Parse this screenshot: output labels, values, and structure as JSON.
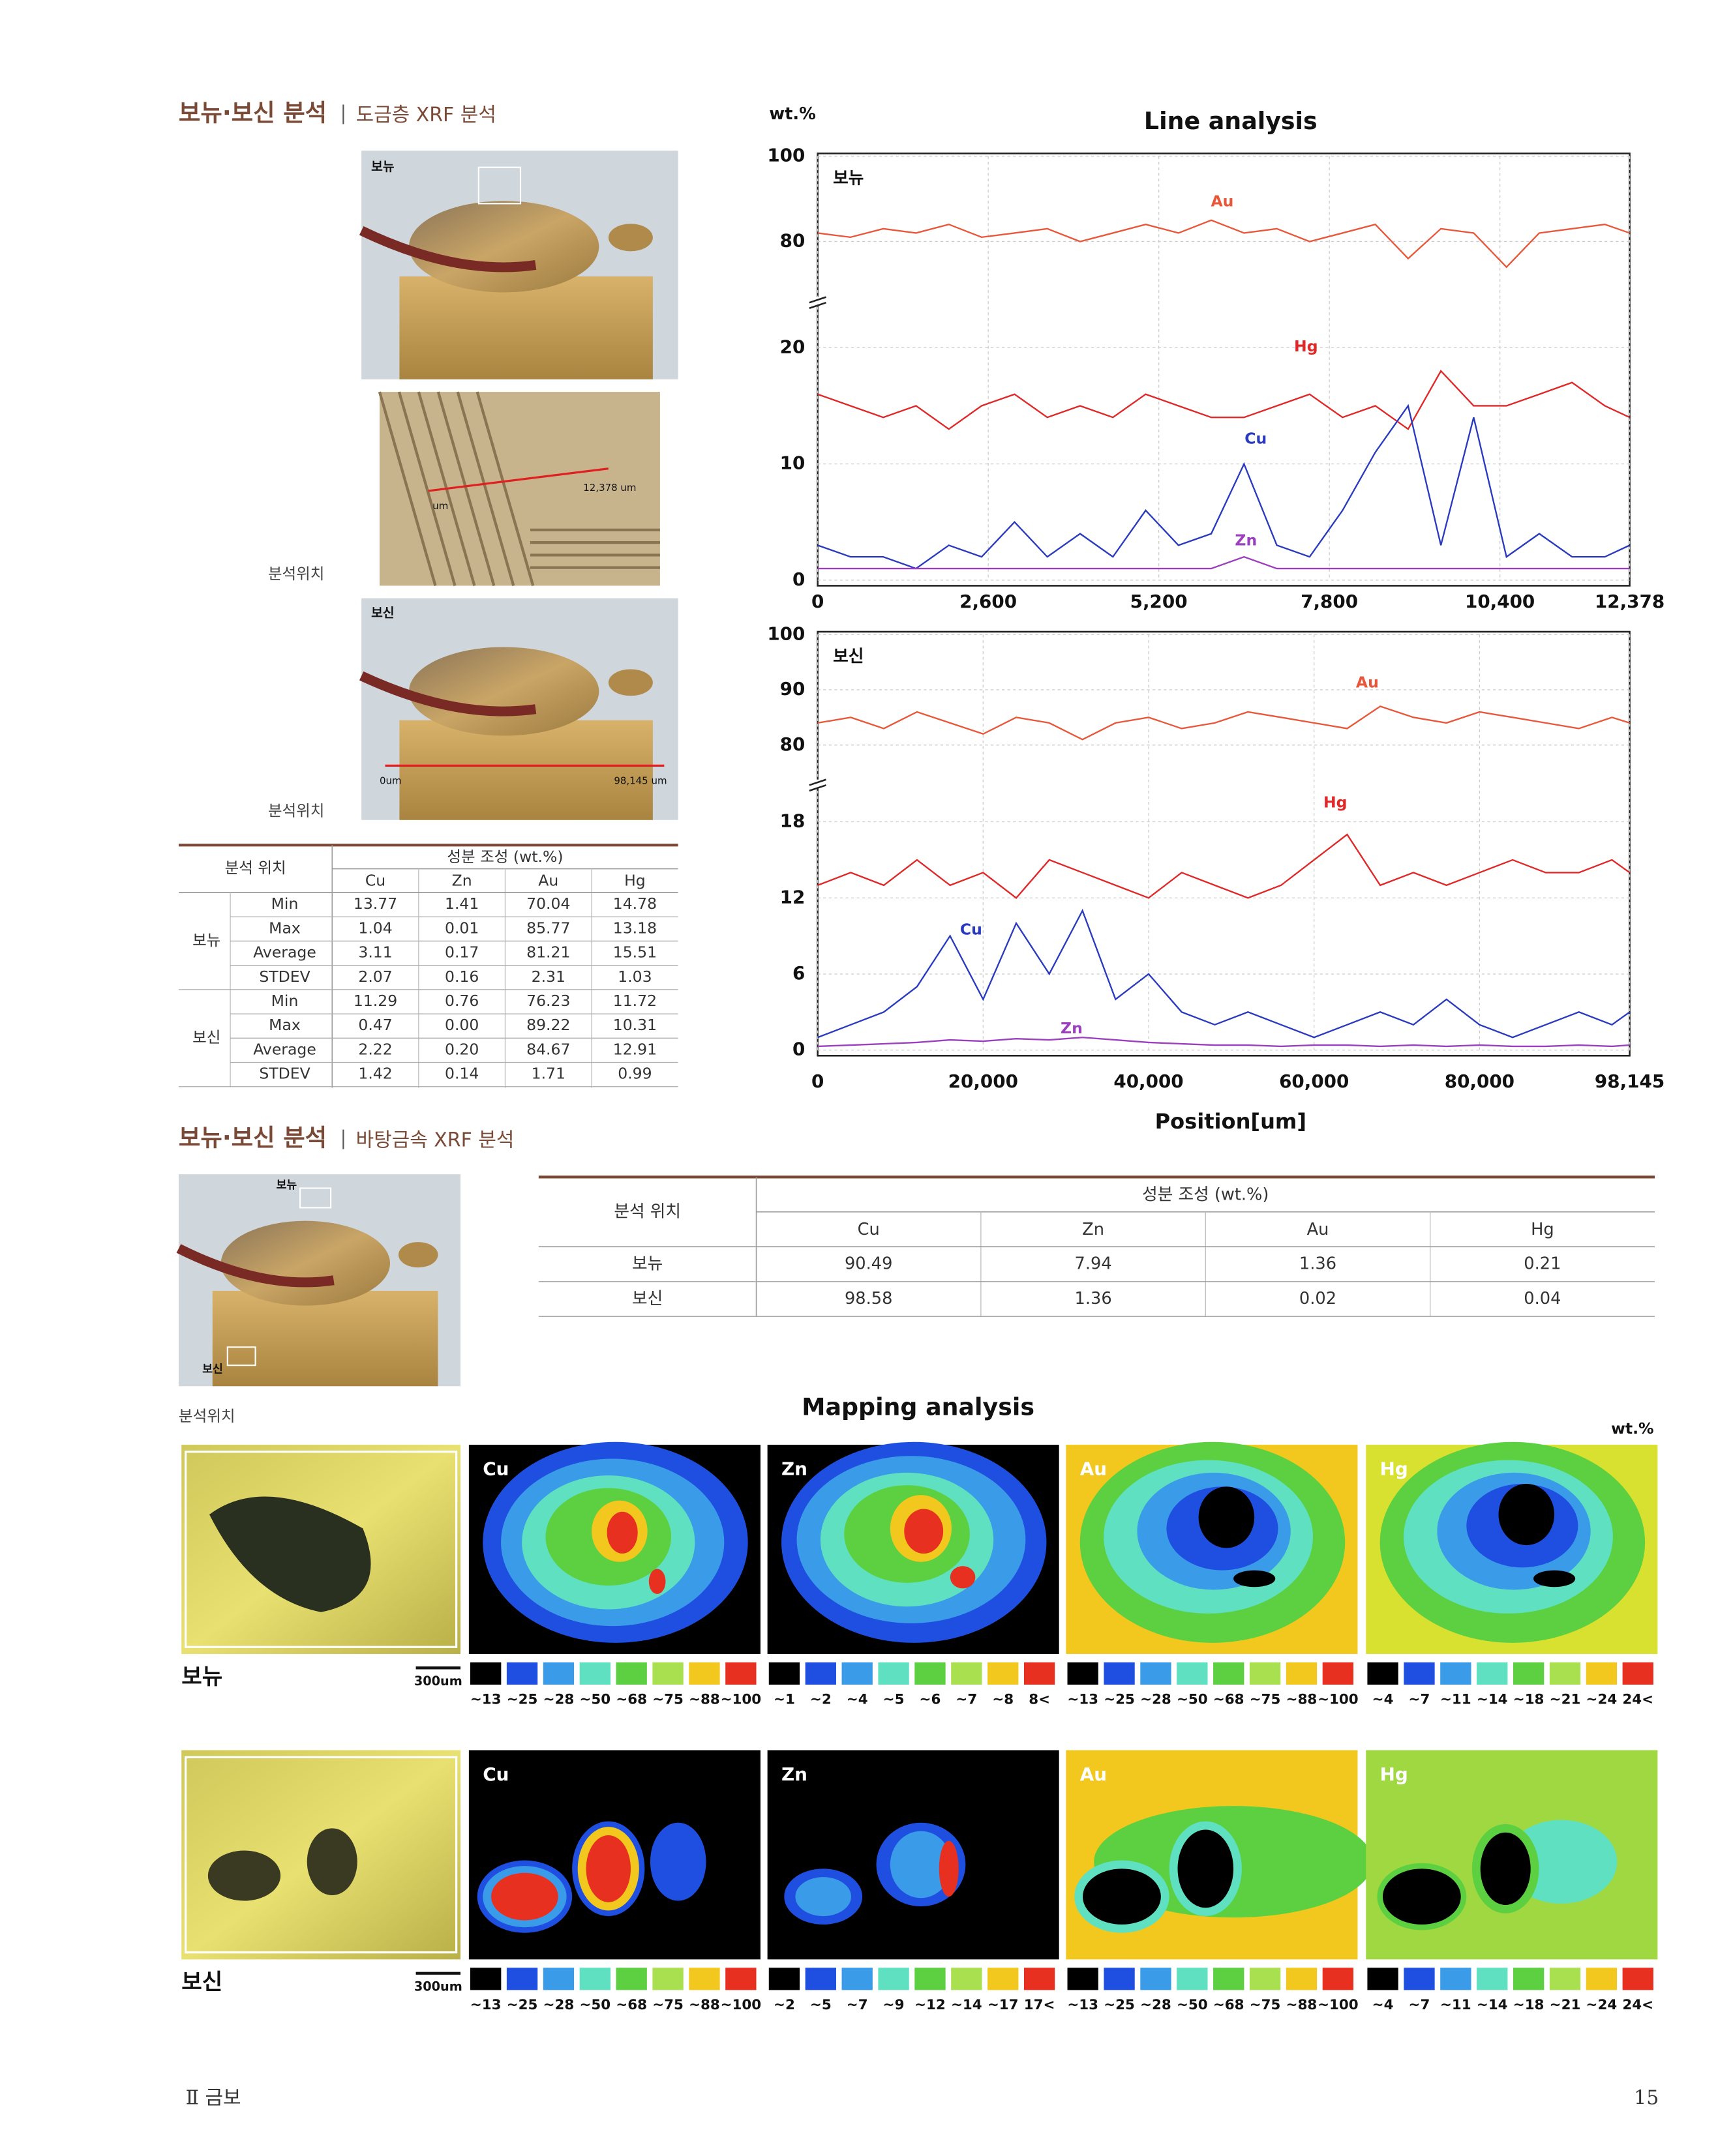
{
  "section1": {
    "title": "보뉴·보신 분석",
    "subtitle": "도금층 XRF 분석",
    "location_label": "분석위치",
    "photos": [
      {
        "label": "보뉴"
      },
      {
        "start": "um",
        "end": "12,378 um"
      },
      {
        "label": "보신",
        "start": "0um",
        "end": "98,145 um"
      }
    ]
  },
  "table1": {
    "location": "분석 위치",
    "composition": "성분 조성 (wt.%)",
    "columns": [
      "Cu",
      "Zn",
      "Au",
      "Hg"
    ],
    "groups": [
      {
        "name": "보뉴",
        "rows": [
          {
            "stat": "Min",
            "values": [
              "13.77",
              "1.41",
              "70.04",
              "14.78"
            ]
          },
          {
            "stat": "Max",
            "values": [
              "1.04",
              "0.01",
              "85.77",
              "13.18"
            ]
          },
          {
            "stat": "Average",
            "values": [
              "3.11",
              "0.17",
              "81.21",
              "15.51"
            ]
          },
          {
            "stat": "STDEV",
            "values": [
              "2.07",
              "0.16",
              "2.31",
              "1.03"
            ]
          }
        ]
      },
      {
        "name": "보신",
        "rows": [
          {
            "stat": "Min",
            "values": [
              "11.29",
              "0.76",
              "76.23",
              "11.72"
            ]
          },
          {
            "stat": "Max",
            "values": [
              "0.47",
              "0.00",
              "89.22",
              "10.31"
            ]
          },
          {
            "stat": "Average",
            "values": [
              "2.22",
              "0.20",
              "84.67",
              "12.91"
            ]
          },
          {
            "stat": "STDEV",
            "values": [
              "1.42",
              "0.14",
              "1.71",
              "0.99"
            ]
          }
        ]
      }
    ]
  },
  "chart_data": [
    {
      "type": "line",
      "title": "Line analysis",
      "ylabel": "wt.%",
      "panel_label": "보뉴",
      "grid": true,
      "xlim": [
        0,
        12378
      ],
      "xticks": [
        0,
        {
          "value": 2600,
          "label": "2,600"
        },
        {
          "value": 5200,
          "label": "5,200"
        },
        {
          "value": 7800,
          "label": "7,800"
        },
        {
          "value": 10400,
          "label": "10,400"
        },
        {
          "value": 12378,
          "label": "12,378"
        }
      ],
      "ylim": [
        0,
        100
      ],
      "ybreak": [
        24,
        66
      ],
      "yticks": [
        0,
        10,
        20,
        80,
        100
      ],
      "x": [
        0,
        500,
        1000,
        1500,
        2000,
        2500,
        3000,
        3500,
        4000,
        4500,
        5000,
        5500,
        6000,
        6500,
        7000,
        7500,
        8000,
        8500,
        9000,
        9500,
        10000,
        10500,
        11000,
        11500,
        12000,
        12378
      ],
      "series": [
        {
          "name": "Au",
          "color": "#e8573a",
          "values": [
            82,
            81,
            83,
            82,
            84,
            81,
            82,
            83,
            80,
            82,
            84,
            82,
            85,
            82,
            83,
            80,
            82,
            84,
            76,
            83,
            82,
            74,
            82,
            83,
            84,
            82
          ]
        },
        {
          "name": "Hg",
          "color": "#e02828",
          "values": [
            16,
            15,
            14,
            15,
            13,
            15,
            16,
            14,
            15,
            14,
            16,
            15,
            14,
            14,
            15,
            16,
            14,
            15,
            13,
            18,
            15,
            15,
            16,
            17,
            15,
            14
          ]
        },
        {
          "name": "Cu",
          "color": "#2a3abf",
          "values": [
            3,
            2,
            2,
            1,
            3,
            2,
            5,
            2,
            4,
            2,
            6,
            3,
            4,
            10,
            3,
            2,
            6,
            11,
            15,
            3,
            14,
            2,
            4,
            2,
            2,
            3
          ]
        },
        {
          "name": "Zn",
          "color": "#9b3fbf",
          "values": [
            1,
            1,
            1,
            1,
            1,
            1,
            1,
            1,
            1,
            1,
            1,
            1,
            1,
            2,
            1,
            1,
            1,
            1,
            1,
            1,
            1,
            1,
            1,
            1,
            1,
            1
          ]
        }
      ]
    },
    {
      "type": "line",
      "panel_label": "보신",
      "xlabel": "Position[um]",
      "grid": true,
      "xlim": [
        0,
        98145
      ],
      "xticks": [
        0,
        {
          "value": 20000,
          "label": "20,000"
        },
        {
          "value": 40000,
          "label": "40,000"
        },
        {
          "value": 60000,
          "label": "60,000"
        },
        {
          "value": 80000,
          "label": "80,000"
        },
        {
          "value": 98145,
          "label": "98,145"
        }
      ],
      "ylim": [
        0,
        100
      ],
      "ybreak": [
        21,
        73
      ],
      "yticks": [
        0,
        6,
        12,
        18,
        80,
        90,
        100
      ],
      "x": [
        0,
        4000,
        8000,
        12000,
        16000,
        20000,
        24000,
        28000,
        32000,
        36000,
        40000,
        44000,
        48000,
        52000,
        56000,
        60000,
        64000,
        68000,
        72000,
        76000,
        80000,
        84000,
        88000,
        92000,
        96000,
        98145
      ],
      "series": [
        {
          "name": "Au",
          "color": "#e8573a",
          "values": [
            84,
            85,
            83,
            86,
            84,
            82,
            85,
            84,
            81,
            84,
            85,
            83,
            84,
            86,
            85,
            84,
            83,
            87,
            85,
            84,
            86,
            85,
            84,
            83,
            85,
            84
          ]
        },
        {
          "name": "Hg",
          "color": "#e02828",
          "values": [
            13,
            14,
            13,
            15,
            13,
            14,
            12,
            15,
            14,
            13,
            12,
            14,
            13,
            12,
            13,
            15,
            17,
            13,
            14,
            13,
            14,
            15,
            14,
            14,
            15,
            14
          ]
        },
        {
          "name": "Cu",
          "color": "#2a3abf",
          "values": [
            1,
            2,
            3,
            5,
            9,
            4,
            10,
            6,
            11,
            4,
            6,
            3,
            2,
            3,
            2,
            1,
            2,
            3,
            2,
            4,
            2,
            1,
            2,
            3,
            2,
            3
          ]
        },
        {
          "name": "Zn",
          "color": "#9b3fbf",
          "values": [
            0.3,
            0.4,
            0.5,
            0.6,
            0.8,
            0.7,
            0.9,
            0.8,
            1,
            0.8,
            0.6,
            0.5,
            0.4,
            0.4,
            0.3,
            0.4,
            0.4,
            0.3,
            0.4,
            0.3,
            0.4,
            0.3,
            0.3,
            0.4,
            0.3,
            0.4
          ]
        }
      ]
    }
  ],
  "section2": {
    "title": "보뉴·보신 분석",
    "subtitle": "바탕금속 XRF 분석",
    "location_label": "분석위치",
    "photo_labels": [
      "보뉴",
      "보신"
    ]
  },
  "table2": {
    "location": "분석 위치",
    "composition": "성분 조성 (wt.%)",
    "columns": [
      "Cu",
      "Zn",
      "Au",
      "Hg"
    ],
    "rows": [
      {
        "name": "보뉴",
        "values": [
          "90.49",
          "7.94",
          "1.36",
          "0.21"
        ]
      },
      {
        "name": "보신",
        "values": [
          "98.58",
          "1.36",
          "0.02",
          "0.04"
        ]
      }
    ]
  },
  "mapping": {
    "title": "Mapping analysis",
    "unit": "wt.%",
    "legend_colors": [
      "#000000",
      "#1f4fe0",
      "#3a9be8",
      "#5fe0c0",
      "#5cd040",
      "#a8e050",
      "#f2c81e",
      "#e83020"
    ],
    "rows": [
      {
        "label": "보뉴",
        "scale": "300um",
        "maps": [
          {
            "element": "Cu",
            "legend": [
              "~13",
              "~25",
              "~28",
              "~50",
              "~68",
              "~75",
              "~88",
              "~100"
            ]
          },
          {
            "element": "Zn",
            "legend": [
              "~1",
              "~2",
              "~4",
              "~5",
              "~6",
              "~7",
              "~8",
              "8<"
            ]
          },
          {
            "element": "Au",
            "legend": [
              "~13",
              "~25",
              "~28",
              "~50",
              "~68",
              "~75",
              "~88",
              "~100"
            ]
          },
          {
            "element": "Hg",
            "legend": [
              "~4",
              "~7",
              "~11",
              "~14",
              "~18",
              "~21",
              "~24",
              "24<"
            ]
          }
        ]
      },
      {
        "label": "보신",
        "scale": "300um",
        "maps": [
          {
            "element": "Cu",
            "legend": [
              "~13",
              "~25",
              "~28",
              "~50",
              "~68",
              "~75",
              "~88",
              "~100"
            ]
          },
          {
            "element": "Zn",
            "legend": [
              "~2",
              "~5",
              "~7",
              "~9",
              "~12",
              "~14",
              "~17",
              "17<"
            ]
          },
          {
            "element": "Au",
            "legend": [
              "~13",
              "~25",
              "~28",
              "~50",
              "~68",
              "~75",
              "~88",
              "~100"
            ]
          },
          {
            "element": "Hg",
            "legend": [
              "~4",
              "~7",
              "~11",
              "~14",
              "~18",
              "~21",
              "~24",
              "24<"
            ]
          }
        ]
      }
    ]
  },
  "footer": {
    "section": "Ⅱ 금보",
    "page": "15"
  }
}
